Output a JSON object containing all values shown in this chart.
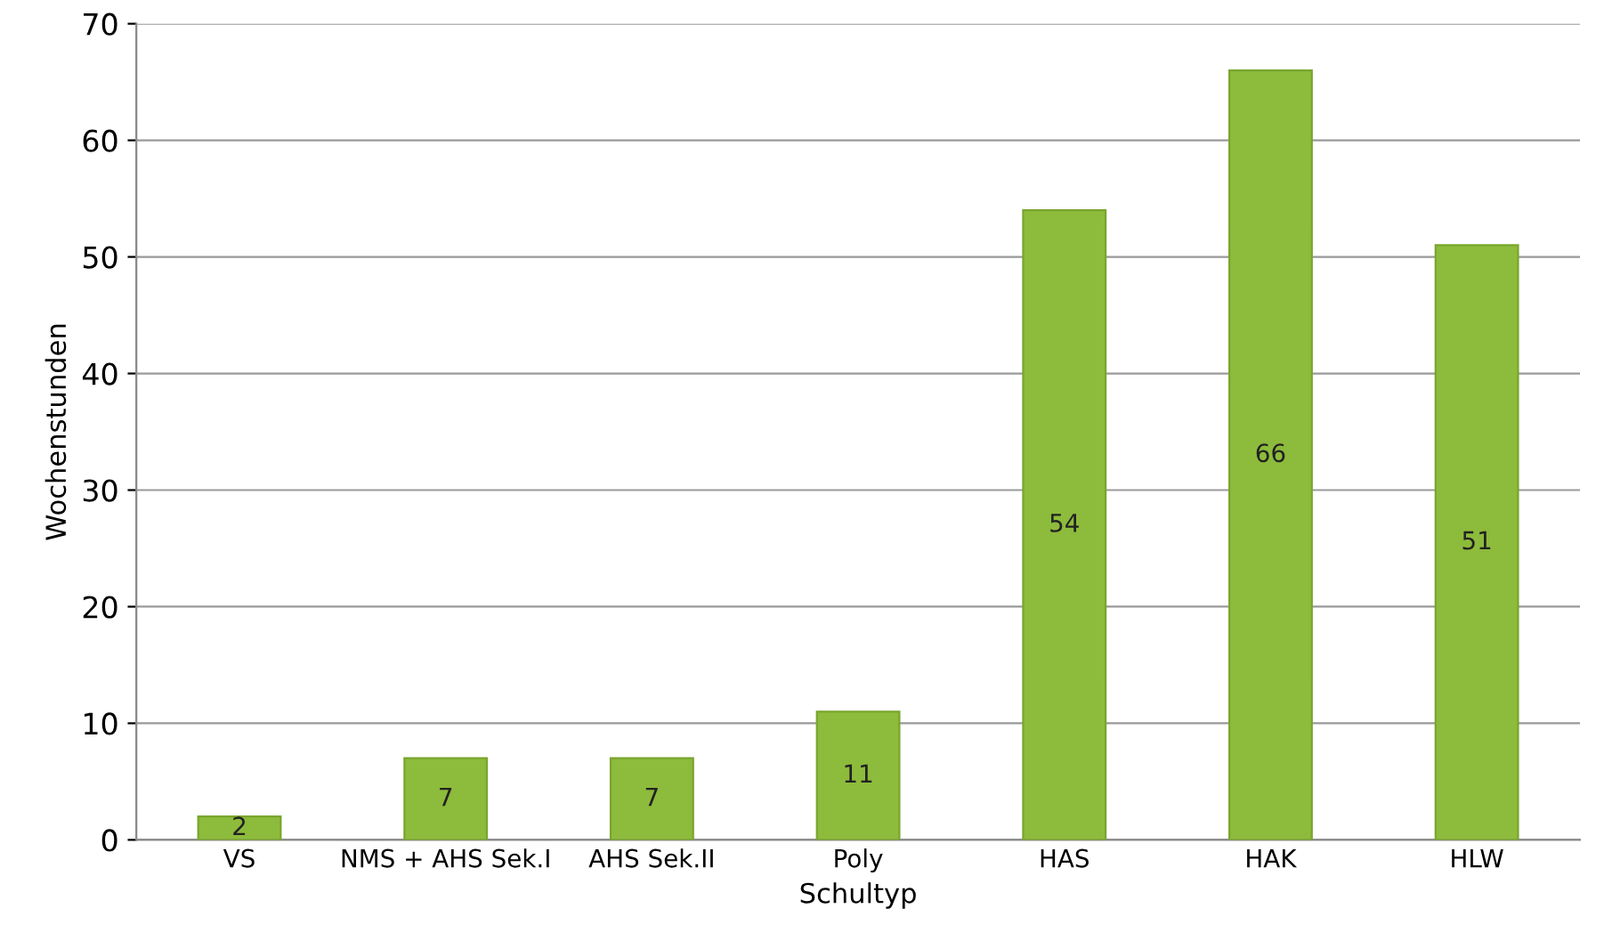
{
  "chart_data": {
    "type": "bar",
    "xlabel": "Schultyp",
    "ylabel": "Wochenstunden",
    "categories": [
      "VS",
      "NMS + AHS Sek.I",
      "AHS Sek.II",
      "Poly",
      "HAS",
      "HAK",
      "HLW"
    ],
    "values": [
      2,
      7,
      7,
      11,
      54,
      66,
      51
    ],
    "color": "#8dbb3c",
    "ylim": [
      0,
      70
    ],
    "yticks": [
      0,
      10,
      20,
      30,
      40,
      50,
      60,
      70
    ],
    "grid": "y",
    "data_labels": true,
    "legend": false
  }
}
